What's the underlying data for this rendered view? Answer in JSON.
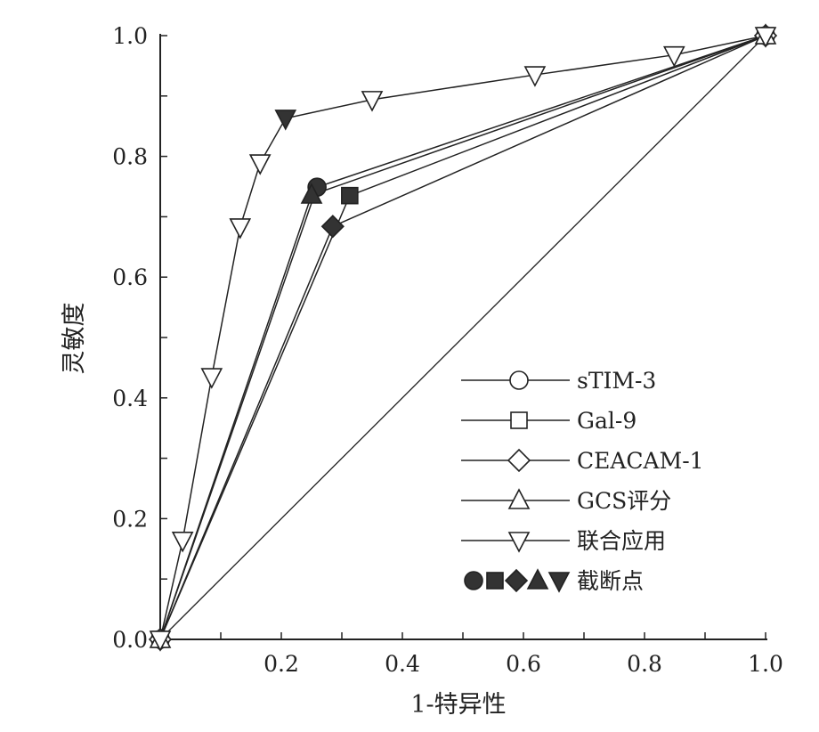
{
  "chart_data": {
    "type": "line",
    "title": "",
    "xlabel": "1-特异性",
    "ylabel": "灵敏度",
    "xlim": [
      0,
      1
    ],
    "ylim": [
      0,
      1
    ],
    "x_tick_labels": [
      "0.2",
      "0.4",
      "0.6",
      "0.8",
      "1.0"
    ],
    "y_tick_labels": [
      "0.0",
      "0.2",
      "0.4",
      "0.6",
      "0.8",
      "1.0"
    ],
    "grid": false,
    "legend_position": "bottom-right",
    "reference_line": [
      [
        0,
        0
      ],
      [
        1,
        1
      ]
    ],
    "series": [
      {
        "name": "sTIM-3",
        "marker": "circle",
        "points": [
          [
            0,
            0
          ],
          [
            0.259,
            0.749
          ],
          [
            1,
            1
          ]
        ],
        "cutoff_index": 1
      },
      {
        "name": "Gal-9",
        "marker": "square",
        "points": [
          [
            0,
            0
          ],
          [
            0.313,
            0.735
          ],
          [
            1,
            1
          ]
        ],
        "cutoff_index": 1
      },
      {
        "name": "CEACAM-1",
        "marker": "diamond",
        "points": [
          [
            0,
            0
          ],
          [
            0.285,
            0.684
          ],
          [
            1,
            1
          ]
        ],
        "cutoff_index": 1
      },
      {
        "name": "GCS评分",
        "marker": "triangle-up",
        "points": [
          [
            0,
            0
          ],
          [
            0.25,
            0.736
          ],
          [
            1,
            1
          ]
        ],
        "cutoff_index": 1
      },
      {
        "name": "联合应用",
        "marker": "triangle-down",
        "points": [
          [
            0,
            0
          ],
          [
            0.037,
            0.164
          ],
          [
            0.085,
            0.435
          ],
          [
            0.132,
            0.683
          ],
          [
            0.165,
            0.789
          ],
          [
            0.207,
            0.863
          ],
          [
            0.35,
            0.894
          ],
          [
            0.619,
            0.935
          ],
          [
            0.849,
            0.968
          ],
          [
            1,
            1
          ]
        ],
        "cutoff_index": 5
      }
    ],
    "cutoff_legend": "截断点"
  }
}
